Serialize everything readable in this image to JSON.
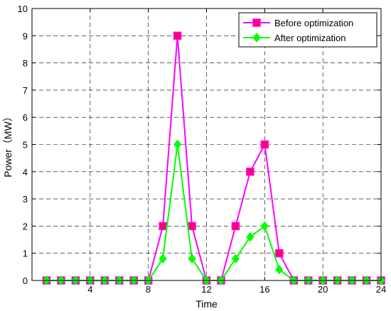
{
  "chart_data": {
    "type": "line",
    "xlabel": "Time",
    "ylabel": "Power（MW）",
    "xlim": [
      0,
      24
    ],
    "ylim": [
      0,
      10
    ],
    "xticks": [
      4,
      8,
      12,
      16,
      20,
      24
    ],
    "yticks": [
      0,
      1,
      2,
      3,
      4,
      5,
      6,
      7,
      8,
      9,
      10
    ],
    "grid": true,
    "legend_position": "top-right",
    "x": [
      1,
      2,
      3,
      4,
      5,
      6,
      7,
      8,
      9,
      10,
      11,
      12,
      13,
      14,
      15,
      16,
      17,
      18,
      19,
      20,
      21,
      22,
      23,
      24
    ],
    "series": [
      {
        "name": "Before optimization",
        "color": "#ff00ff",
        "marker": "square",
        "marker_fill": "#ff0066",
        "values": [
          0,
          0,
          0,
          0,
          0,
          0,
          0,
          0,
          2,
          9,
          2,
          0,
          0,
          2,
          4,
          5,
          1,
          0,
          0,
          0,
          0,
          0,
          0,
          0
        ]
      },
      {
        "name": "After optimization",
        "color": "#00ff00",
        "marker": "diamond",
        "marker_fill": "#00ff00",
        "values": [
          0,
          0,
          0,
          0,
          0,
          0,
          0,
          0,
          0.8,
          5,
          0.8,
          0,
          0,
          0.8,
          1.6,
          2,
          0.4,
          0,
          0,
          0,
          0,
          0,
          0,
          0
        ]
      }
    ]
  }
}
